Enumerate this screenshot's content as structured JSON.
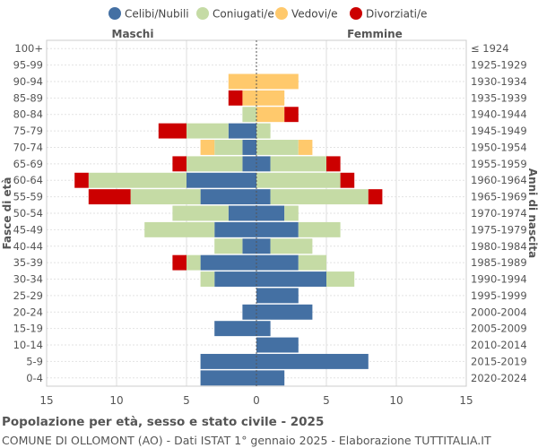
{
  "chart_data": {
    "type": "bar",
    "orientation": "horizontal",
    "stacked": true,
    "title": "Popolazione per età, sesso e stato civile - 2025",
    "subtitle": "COMUNE DI OLLOMONT (AO) - Dati ISTAT 1° gennaio 2025 - Elaborazione TUTTITALIA.IT",
    "ylabel_left": "Fasce di età",
    "ylabel_right": "Anni di nascita",
    "left_group_label": "Maschi",
    "right_group_label": "Femmine",
    "xlim": [
      -15,
      15
    ],
    "xticks": [
      -15,
      -10,
      -5,
      0,
      5,
      10,
      15
    ],
    "xtick_labels": [
      "15",
      "10",
      "5",
      "0",
      "5",
      "10",
      "15"
    ],
    "legend_position": "top",
    "grid": true,
    "series": [
      {
        "name": "Celibi/Nubili",
        "color": "#4470a3"
      },
      {
        "name": "Coniugati/e",
        "color": "#c5dba5"
      },
      {
        "name": "Vedovi/e",
        "color": "#ffc96c"
      },
      {
        "name": "Divorziati/e",
        "color": "#cc0000"
      }
    ],
    "categories": [
      "100+",
      "95-99",
      "90-94",
      "85-89",
      "80-84",
      "75-79",
      "70-74",
      "65-69",
      "60-64",
      "55-59",
      "50-54",
      "45-49",
      "40-44",
      "35-39",
      "30-34",
      "25-29",
      "20-24",
      "15-19",
      "10-14",
      "5-9",
      "0-4"
    ],
    "birth_years": [
      "≤ 1924",
      "1925-1929",
      "1930-1934",
      "1935-1939",
      "1940-1944",
      "1945-1949",
      "1950-1954",
      "1955-1959",
      "1960-1964",
      "1965-1969",
      "1970-1974",
      "1975-1979",
      "1980-1984",
      "1985-1989",
      "1990-1994",
      "1995-1999",
      "2000-2004",
      "2005-2009",
      "2010-2014",
      "2015-2019",
      "2020-2024"
    ],
    "males": [
      [
        0,
        0,
        0,
        0
      ],
      [
        0,
        0,
        0,
        0
      ],
      [
        0,
        0,
        2,
        0
      ],
      [
        0,
        0,
        1,
        1
      ],
      [
        0,
        1,
        0,
        0
      ],
      [
        2,
        3,
        0,
        2
      ],
      [
        1,
        2,
        1,
        0
      ],
      [
        1,
        4,
        0,
        1
      ],
      [
        5,
        7,
        0,
        1
      ],
      [
        4,
        5,
        0,
        3
      ],
      [
        2,
        4,
        0,
        0
      ],
      [
        3,
        5,
        0,
        0
      ],
      [
        1,
        2,
        0,
        0
      ],
      [
        4,
        1,
        0,
        1
      ],
      [
        3,
        1,
        0,
        0
      ],
      [
        0,
        0,
        0,
        0
      ],
      [
        1,
        0,
        0,
        0
      ],
      [
        3,
        0,
        0,
        0
      ],
      [
        0,
        0,
        0,
        0
      ],
      [
        4,
        0,
        0,
        0
      ],
      [
        4,
        0,
        0,
        0
      ]
    ],
    "females": [
      [
        0,
        0,
        0,
        0
      ],
      [
        0,
        0,
        0,
        0
      ],
      [
        0,
        0,
        3,
        0
      ],
      [
        0,
        0,
        2,
        0
      ],
      [
        0,
        0,
        2,
        1
      ],
      [
        0,
        1,
        0,
        0
      ],
      [
        0,
        3,
        1,
        0
      ],
      [
        1,
        4,
        0,
        1
      ],
      [
        0,
        6,
        0,
        1
      ],
      [
        1,
        7,
        0,
        1
      ],
      [
        2,
        1,
        0,
        0
      ],
      [
        3,
        3,
        0,
        0
      ],
      [
        1,
        3,
        0,
        0
      ],
      [
        3,
        2,
        0,
        0
      ],
      [
        5,
        2,
        0,
        0
      ],
      [
        3,
        0,
        0,
        0
      ],
      [
        4,
        0,
        0,
        0
      ],
      [
        1,
        0,
        0,
        0
      ],
      [
        3,
        0,
        0,
        0
      ],
      [
        8,
        0,
        0,
        0
      ],
      [
        2,
        0,
        0,
        0
      ]
    ]
  }
}
